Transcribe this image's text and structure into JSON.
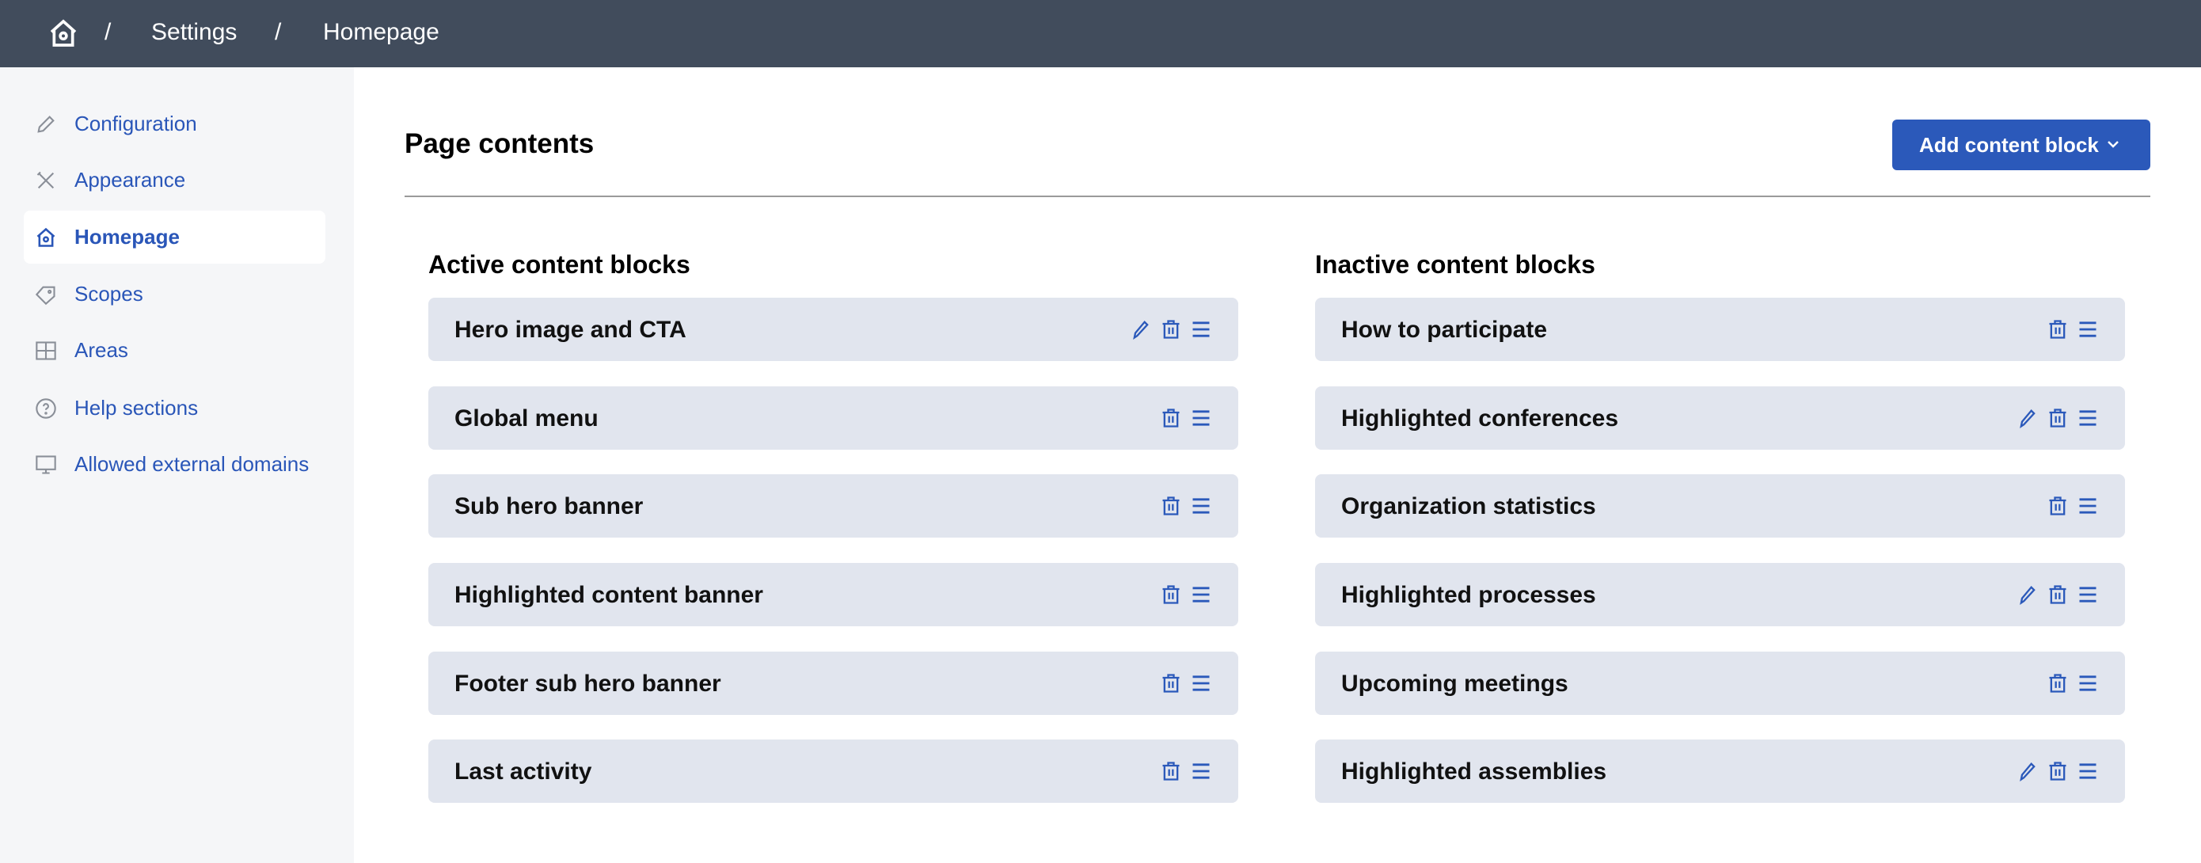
{
  "breadcrumb": {
    "home_icon": "home-gear-icon",
    "items": [
      "Settings",
      "Homepage"
    ],
    "separator": "/"
  },
  "sidebar": {
    "items": [
      {
        "label": "Configuration",
        "icon": "pencil-icon"
      },
      {
        "label": "Appearance",
        "icon": "tools-icon"
      },
      {
        "label": "Homepage",
        "icon": "home-gear-icon",
        "active": true
      },
      {
        "label": "Scopes",
        "icon": "tag-icon"
      },
      {
        "label": "Areas",
        "icon": "layout-icon"
      },
      {
        "label": "Help sections",
        "icon": "question-circle-icon"
      },
      {
        "label": "Allowed external domains",
        "icon": "monitor-icon"
      }
    ]
  },
  "main": {
    "title": "Page contents",
    "add_button": "Add content block",
    "active_heading": "Active content blocks",
    "inactive_heading": "Inactive content blocks",
    "active_blocks": [
      {
        "name": "Hero image and CTA",
        "editable": true
      },
      {
        "name": "Global menu",
        "editable": false
      },
      {
        "name": "Sub hero banner",
        "editable": false
      },
      {
        "name": "Highlighted content banner",
        "editable": false
      },
      {
        "name": "Footer sub hero banner",
        "editable": false
      },
      {
        "name": "Last activity",
        "editable": false
      }
    ],
    "inactive_blocks": [
      {
        "name": "How to participate",
        "editable": false
      },
      {
        "name": "Highlighted conferences",
        "editable": true
      },
      {
        "name": "Organization statistics",
        "editable": false
      },
      {
        "name": "Highlighted processes",
        "editable": true
      },
      {
        "name": "Upcoming meetings",
        "editable": false
      },
      {
        "name": "Highlighted assemblies",
        "editable": true
      }
    ]
  },
  "colors": {
    "header": "#414c5c",
    "accent": "#2b59ba",
    "block_bg": "#e1e5ee",
    "sidebar_bg": "#f5f6f8"
  }
}
